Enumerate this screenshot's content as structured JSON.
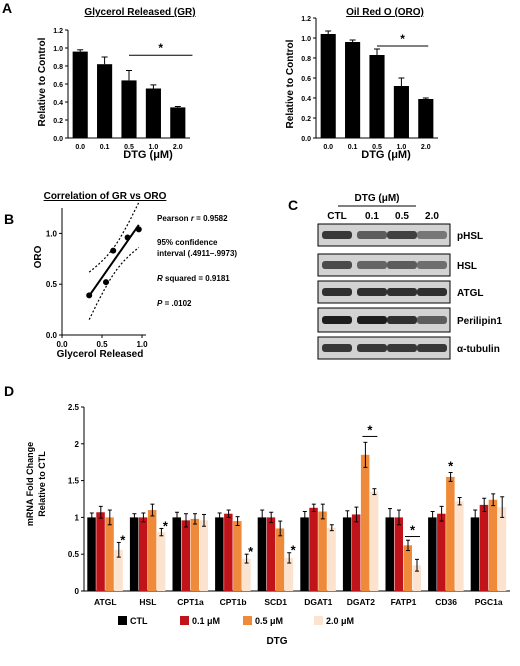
{
  "panel_labels": [
    "A",
    "B",
    "C",
    "D"
  ],
  "chart_data": [
    {
      "panel": "A",
      "type": "bar",
      "title": "Glycerol Released (GR)",
      "xlabel": "DTG (μM)",
      "ylabel": "Relative to Control",
      "categories": [
        "0.0",
        "0.1",
        "0.5",
        "1.0",
        "2.0"
      ],
      "values": [
        0.96,
        0.82,
        0.64,
        0.55,
        0.34
      ],
      "errors": [
        0.02,
        0.08,
        0.11,
        0.04,
        0.01
      ],
      "ylim": [
        0,
        1.2
      ],
      "yticks": [
        "0.0",
        "0.2",
        "0.4",
        "0.6",
        "0.8",
        "1.0",
        "1.2"
      ],
      "significance": "*",
      "bar_color": "#000000"
    },
    {
      "panel": "A",
      "type": "bar",
      "title": "Oil Red O (ORO)",
      "xlabel": "DTG (μM)",
      "ylabel": "Relative to Control",
      "categories": [
        "0.0",
        "0.1",
        "0.5",
        "1.0",
        "2.0"
      ],
      "values": [
        1.04,
        0.96,
        0.83,
        0.52,
        0.39
      ],
      "errors": [
        0.03,
        0.02,
        0.06,
        0.08,
        0.01
      ],
      "ylim": [
        0,
        1.2
      ],
      "yticks": [
        "0.0",
        "0.2",
        "0.4",
        "0.6",
        "0.8",
        "1.0",
        "1.2"
      ],
      "significance": "*",
      "bar_color": "#000000"
    },
    {
      "panel": "B",
      "type": "scatter",
      "title": "Correlation of GR vs ORO",
      "xlabel": "Glycerol Released",
      "ylabel": "ORO",
      "x": [
        0.34,
        0.55,
        0.64,
        0.82,
        0.96
      ],
      "y": [
        0.39,
        0.52,
        0.83,
        0.96,
        1.04
      ],
      "xlim": [
        0,
        1.0
      ],
      "ylim": [
        0,
        1.25
      ],
      "xticks": [
        "0.0",
        "0.5",
        "1.0"
      ],
      "yticks": [
        "0.0",
        "0.5",
        "1.0"
      ],
      "stats": {
        "pearson_label": "Pearson",
        "pearson_var": "r",
        "pearson_value": "= 0.9582",
        "ci_line1": "95% confidence",
        "ci_line2": "interval (.4911–.9973)",
        "rsq_var": "R",
        "rsq_text": "squared = 0.9181",
        "p_var": "P",
        "p_text": "= .0102"
      }
    },
    {
      "panel": "D",
      "type": "bar",
      "xlabel": "DTG",
      "ylabel_line1": "mRNA Fold Change",
      "ylabel_line2": "Relative to CTL",
      "ylim": [
        0,
        2.5
      ],
      "yticks": [
        "0",
        "0.5",
        "1",
        "1.5",
        "2",
        "2.5"
      ],
      "categories": [
        "ATGL",
        "HSL",
        "CPT1a",
        "CPT1b",
        "SCD1",
        "DGAT1",
        "DGAT2",
        "FATP1",
        "CD36",
        "PGC1a"
      ],
      "series": [
        {
          "name": "CTL",
          "color": "#000000",
          "values": [
            1.0,
            1.0,
            1.0,
            1.0,
            1.0,
            1.0,
            1.0,
            1.0,
            1.0,
            1.0
          ],
          "errors": [
            0.06,
            0.05,
            0.07,
            0.06,
            0.1,
            0.08,
            0.09,
            0.12,
            0.08,
            0.1
          ]
        },
        {
          "name": "0.1 μM",
          "color": "#c0141a",
          "values": [
            1.07,
            1.0,
            0.96,
            1.05,
            1.0,
            1.13,
            1.04,
            1.0,
            1.05,
            1.17
          ],
          "errors": [
            0.08,
            0.06,
            0.09,
            0.05,
            0.07,
            0.05,
            0.1,
            0.1,
            0.1,
            0.09
          ]
        },
        {
          "name": "0.5 μM",
          "color": "#ef8a3a",
          "values": [
            1.0,
            1.1,
            0.98,
            0.95,
            0.85,
            1.08,
            1.85,
            0.62,
            1.55,
            1.24
          ],
          "errors": [
            0.1,
            0.08,
            0.07,
            0.06,
            0.1,
            0.1,
            0.17,
            0.07,
            0.06,
            0.08
          ]
        },
        {
          "name": "2.0 μM",
          "color": "#fbe3cf",
          "values": [
            0.56,
            0.8,
            0.96,
            0.44,
            0.45,
            0.86,
            1.35,
            0.35,
            1.22,
            1.14
          ],
          "errors": [
            0.1,
            0.05,
            0.08,
            0.06,
            0.07,
            0.04,
            0.04,
            0.08,
            0.05,
            0.14
          ]
        }
      ],
      "significance": [
        {
          "category": "ATGL",
          "label": "*"
        },
        {
          "category": "HSL",
          "label": "*"
        },
        {
          "category": "CPT1b",
          "label": "*"
        },
        {
          "category": "SCD1",
          "label": "*"
        },
        {
          "category": "DGAT2",
          "label": "*"
        },
        {
          "category": "FATP1",
          "label": "*"
        },
        {
          "category": "CD36",
          "label": "*"
        }
      ]
    }
  ],
  "western_blot": {
    "header": "DTG (μM)",
    "columns": [
      "CTL",
      "0.1",
      "0.5",
      "2.0"
    ],
    "rows": [
      {
        "label": "pHSL",
        "intensity": [
          0.8,
          0.6,
          0.75,
          0.45
        ]
      },
      {
        "label": "HSL",
        "intensity": [
          0.7,
          0.55,
          0.6,
          0.5
        ]
      },
      {
        "label": "ATGL",
        "intensity": [
          0.85,
          0.85,
          0.85,
          0.85
        ]
      },
      {
        "label": "Perilipin1",
        "intensity": [
          0.95,
          0.95,
          0.85,
          0.6
        ]
      },
      {
        "label": "α-tubulin",
        "intensity": [
          0.8,
          0.8,
          0.8,
          0.8
        ]
      }
    ]
  }
}
